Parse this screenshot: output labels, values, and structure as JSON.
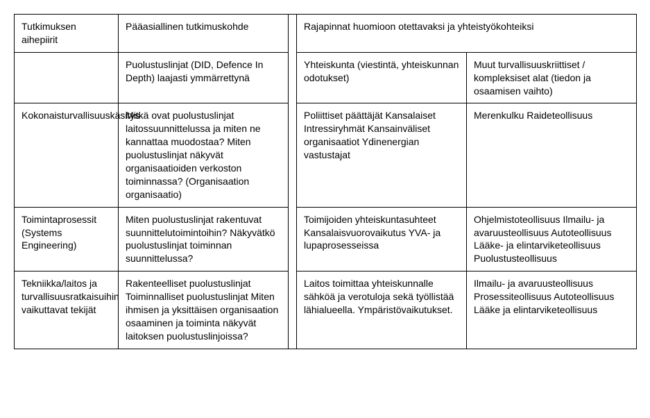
{
  "table": {
    "header": {
      "col1": "Tutkimuksen aihepiirit",
      "col2": "Pääasiallinen tutkimuskohde",
      "col34": "Rajapinnat huomioon otettavaksi ja yhteistyökohteiksi"
    },
    "rows": [
      {
        "c1": "",
        "c2": "Puolustuslinjat (DID, Defence In Depth) laajasti ymmärrettynä",
        "c3": "Yhteiskunta (viestintä, yhteiskunnan odotukset)",
        "c4": "Muut turvallisuuskriittiset / kompleksiset alat (tiedon ja osaamisen vaihto)"
      },
      {
        "c1": "Kokonaisturvallisuuskäsitys",
        "c2": "Mitkä ovat puolustuslinjat laitossuunnittelussa ja miten ne kannattaa muodostaa? Miten puolustuslinjat näkyvät organisaatioiden verkoston toiminnassa? (Organisaation organisaatio)",
        "c3": "Poliittiset päättäjät Kansalaiset Intressiryhmät Kansainväliset organisaatiot Ydinenergian vastustajat",
        "c4": "Merenkulku Raideteollisuus"
      },
      {
        "c1": "Toimintaprosessit (Systems Engineering)",
        "c2": "Miten puolustuslinjat rakentuvat suunnittelutoimintoihin? Näkyvätkö puolustuslinjat toiminnan suunnittelussa?",
        "c3": "Toimijoiden yhteiskuntasuhteet Kansalaisvuorovaikutus YVA- ja lupaprosesseissa",
        "c4": "Ohjelmistoteollisuus Ilmailu- ja avaruusteollisuus Autoteollisuus Lääke- ja elintarviketeollisuus Puolustusteollisuus"
      },
      {
        "c1": "Tekniikka/laitos ja turvallisuusratkaisuihin vaikuttavat tekijät",
        "c2": "Rakenteelliset puolustuslinjat Toiminnalliset puolustuslinjat Miten ihmisen ja yksittäisen organisaation osaaminen ja toiminta näkyvät laitoksen puolustuslinjoissa?",
        "c3": "Laitos toimittaa yhteiskunnalle sähköä ja verotuloja sekä työllistää lähialueella. Ympäristövaikutukset.",
        "c4": "Ilmailu- ja avaruusteollisuus Prosessiteollisuus Autoteollisuus Lääke ja elintarviketeollisuus"
      }
    ]
  }
}
